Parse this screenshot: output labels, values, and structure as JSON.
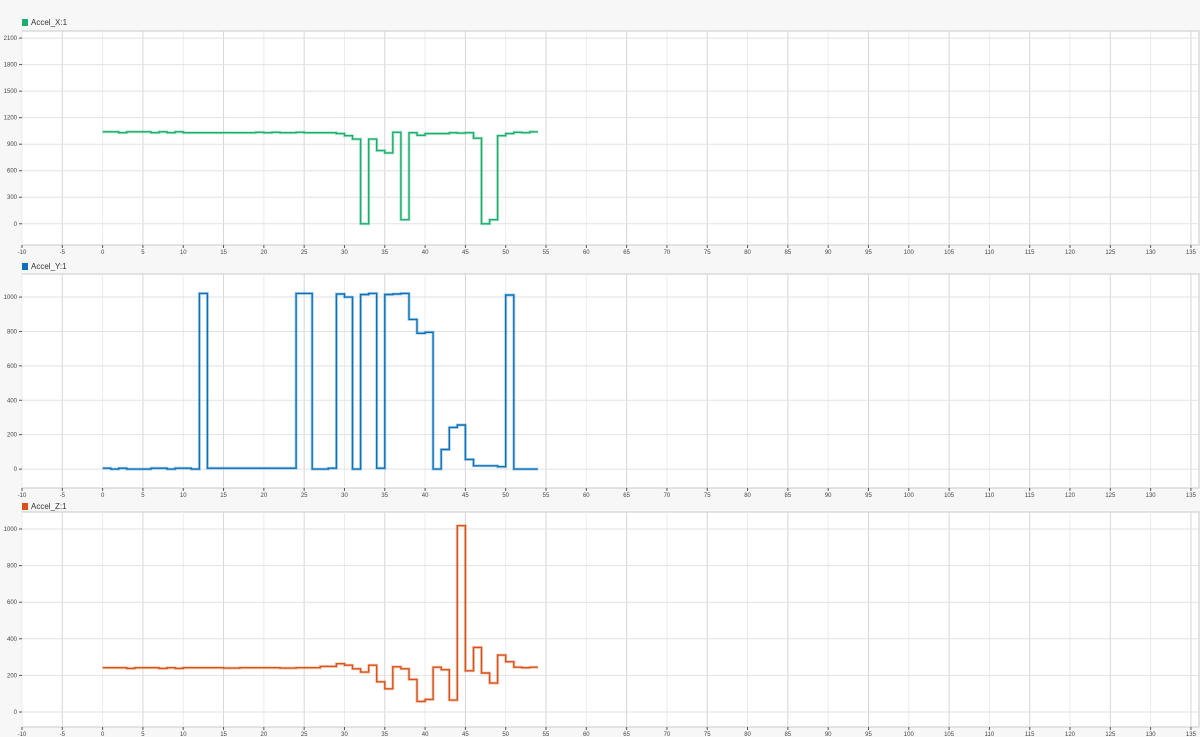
{
  "chart_data": [
    {
      "type": "line",
      "step": true,
      "legend": "Accel_X:1",
      "color": "#1aaf6c",
      "xlim": [
        -10,
        136
      ],
      "ylim": [
        -240,
        2180
      ],
      "xticks": [
        -10,
        -5,
        0,
        5,
        10,
        15,
        20,
        25,
        30,
        35,
        40,
        45,
        50,
        55,
        60,
        65,
        70,
        75,
        80,
        85,
        90,
        95,
        100,
        105,
        110,
        115,
        120,
        125,
        130,
        135
      ],
      "yticks": [
        0,
        300,
        600,
        900,
        1200,
        1500,
        1800,
        2100
      ],
      "grid": true,
      "x_start": 0,
      "x_end": 54,
      "x_step": 1,
      "values": [
        1040,
        1040,
        1030,
        1040,
        1040,
        1040,
        1030,
        1040,
        1030,
        1040,
        1030,
        1030,
        1030,
        1030,
        1030,
        1030,
        1030,
        1030,
        1030,
        1035,
        1030,
        1035,
        1030,
        1030,
        1035,
        1030,
        1030,
        1030,
        1030,
        1020,
        996,
        958,
        0,
        958,
        828,
        802,
        1034,
        46,
        1030,
        1000,
        1020,
        1020,
        1020,
        1030,
        1025,
        1030,
        968,
        0,
        46,
        996,
        1020,
        1034,
        1030,
        1040
      ]
    },
    {
      "type": "line",
      "step": true,
      "legend": "Accel_Y:1",
      "color": "#0a72ba",
      "xlim": [
        -10,
        136
      ],
      "ylim": [
        -110,
        1134
      ],
      "xticks": [
        -10,
        -5,
        0,
        5,
        10,
        15,
        20,
        25,
        30,
        35,
        40,
        45,
        50,
        55,
        60,
        65,
        70,
        75,
        80,
        85,
        90,
        95,
        100,
        105,
        110,
        115,
        120,
        125,
        130,
        135
      ],
      "yticks": [
        0,
        200,
        400,
        600,
        800,
        1000
      ],
      "grid": true,
      "x_start": 0,
      "x_end": 54,
      "x_step": 1,
      "values": [
        5,
        0,
        5,
        0,
        0,
        0,
        5,
        5,
        0,
        5,
        5,
        0,
        1021,
        5,
        5,
        5,
        5,
        5,
        5,
        5,
        5,
        5,
        5,
        5,
        1021,
        1021,
        0,
        0,
        5,
        1018,
        1000,
        0,
        1015,
        1021,
        5,
        1015,
        1018,
        1021,
        870,
        789,
        795,
        0,
        114,
        242,
        256,
        56,
        19,
        19,
        19,
        14,
        1012,
        0,
        0,
        0
      ]
    },
    {
      "type": "line",
      "step": true,
      "legend": "Accel_Z:1",
      "color": "#d95319",
      "xlim": [
        -10,
        136
      ],
      "ylim": [
        -82,
        1093
      ],
      "xticks": [
        -10,
        -5,
        0,
        5,
        10,
        15,
        20,
        25,
        30,
        35,
        40,
        45,
        50,
        55,
        60,
        65,
        70,
        75,
        80,
        85,
        90,
        95,
        100,
        105,
        110,
        115,
        120,
        125,
        130,
        135
      ],
      "yticks": [
        0,
        200,
        400,
        600,
        800,
        1000
      ],
      "grid": true,
      "x_start": 0,
      "x_end": 54,
      "x_step": 1,
      "values": [
        242,
        242,
        242,
        238,
        242,
        242,
        242,
        238,
        242,
        238,
        242,
        242,
        242,
        242,
        242,
        240,
        240,
        242,
        242,
        242,
        242,
        242,
        240,
        240,
        242,
        242,
        242,
        249,
        249,
        264,
        256,
        236,
        218,
        256,
        165,
        127,
        247,
        236,
        178,
        58,
        69,
        245,
        231,
        65,
        1018,
        225,
        353,
        213,
        158,
        311,
        275,
        245,
        242,
        245
      ]
    }
  ]
}
